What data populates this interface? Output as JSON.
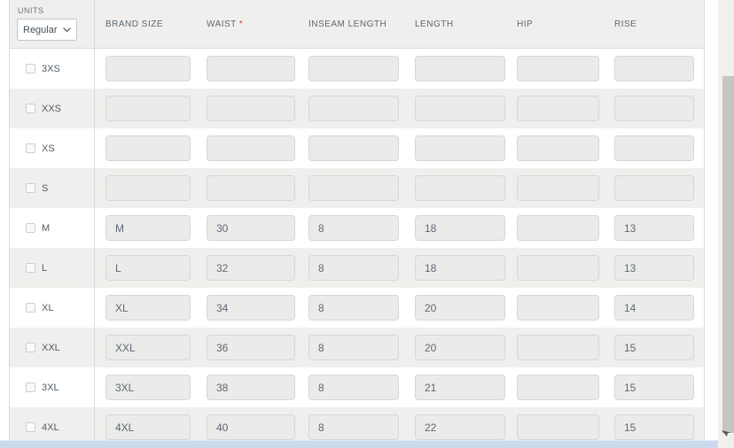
{
  "units": {
    "label": "UNITS",
    "selected": "Regular"
  },
  "table": {
    "required_marker": "*",
    "columns": [
      {
        "key": "brand_size",
        "label": "BRAND SIZE",
        "required": false
      },
      {
        "key": "waist",
        "label": "WAIST",
        "required": true
      },
      {
        "key": "inseam_length",
        "label": "INSEAM LENGTH",
        "required": false
      },
      {
        "key": "length",
        "label": "LENGTH",
        "required": false
      },
      {
        "key": "hip",
        "label": "HIP",
        "required": false
      },
      {
        "key": "rise",
        "label": "RISE",
        "required": false
      }
    ],
    "rows": [
      {
        "size": "3XS",
        "checked": false,
        "values": {
          "brand_size": "",
          "waist": "",
          "inseam_length": "",
          "length": "",
          "hip": "",
          "rise": ""
        }
      },
      {
        "size": "XXS",
        "checked": false,
        "values": {
          "brand_size": "",
          "waist": "",
          "inseam_length": "",
          "length": "",
          "hip": "",
          "rise": ""
        }
      },
      {
        "size": "XS",
        "checked": false,
        "values": {
          "brand_size": "",
          "waist": "",
          "inseam_length": "",
          "length": "",
          "hip": "",
          "rise": ""
        }
      },
      {
        "size": "S",
        "checked": false,
        "values": {
          "brand_size": "",
          "waist": "",
          "inseam_length": "",
          "length": "",
          "hip": "",
          "rise": ""
        }
      },
      {
        "size": "M",
        "checked": false,
        "values": {
          "brand_size": "M",
          "waist": "30",
          "inseam_length": "8",
          "length": "18",
          "hip": "",
          "rise": "13"
        }
      },
      {
        "size": "L",
        "checked": false,
        "values": {
          "brand_size": "L",
          "waist": "32",
          "inseam_length": "8",
          "length": "18",
          "hip": "",
          "rise": "13"
        }
      },
      {
        "size": "XL",
        "checked": false,
        "values": {
          "brand_size": "XL",
          "waist": "34",
          "inseam_length": "8",
          "length": "20",
          "hip": "",
          "rise": "14"
        }
      },
      {
        "size": "XXL",
        "checked": false,
        "values": {
          "brand_size": "XXL",
          "waist": "36",
          "inseam_length": "8",
          "length": "20",
          "hip": "",
          "rise": "15"
        }
      },
      {
        "size": "3XL",
        "checked": false,
        "values": {
          "brand_size": "3XL",
          "waist": "38",
          "inseam_length": "8",
          "length": "21",
          "hip": "",
          "rise": "15"
        }
      },
      {
        "size": "4XL",
        "checked": false,
        "values": {
          "brand_size": "4XL",
          "waist": "40",
          "inseam_length": "8",
          "length": "22",
          "hip": "",
          "rise": "15"
        }
      }
    ]
  },
  "icons": {
    "chevron_down": "chevron-down-icon",
    "mouse_cursor": "mouse-cursor"
  },
  "colors": {
    "header_bg": "#f0efed",
    "row_bg": "#ffffff",
    "row_alt_bg": "#f0efed",
    "input_bg": "#ebebea",
    "input_border": "#d7d6d5",
    "table_border": "#dcdbda",
    "header_text": "#5d6771",
    "value_text": "#5e6872",
    "required_asterisk": "#cc4436",
    "vscroll_track": "#f1f0ef",
    "vscroll_thumb": "#c6c5c3",
    "hscroll_bar": "#cbdaef"
  }
}
